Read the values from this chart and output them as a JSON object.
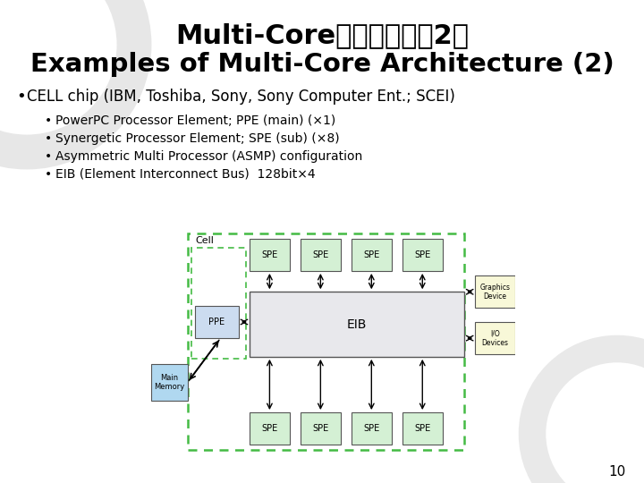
{
  "title_line1": "Multi-Coreバス構成例（2）",
  "title_line2": "Examples of Multi-Core Architecture (2)",
  "bullet_main": "CELL chip (IBM, Toshiba, Sony, Sony Computer Ent.; SCEI)",
  "bullet_sub": [
    "PowerPC Processor Element; PPE (main) (×1)",
    "Synergetic Processor Element; SPE (sub) (×8)",
    "Asymmetric Multi Processor (ASMP) configuration",
    "EIB (Element Interconnect Bus)  128bit×4"
  ],
  "page_number": "10",
  "bg_color": "#ffffff",
  "title_color": "#000000",
  "bullet_color": "#000000",
  "circle_color": "#b0b0b0",
  "spe_fill": "#d4f0d4",
  "spe_edge": "#555555",
  "ppe_fill": "#ccdcf0",
  "ppe_edge": "#555555",
  "eib_fill": "#e8e8ec",
  "eib_edge": "#555555",
  "mem_fill": "#b0d8f0",
  "mem_edge": "#555555",
  "io_fill": "#f8f8d8",
  "io_edge": "#555555",
  "cell_border": "#44bb44"
}
